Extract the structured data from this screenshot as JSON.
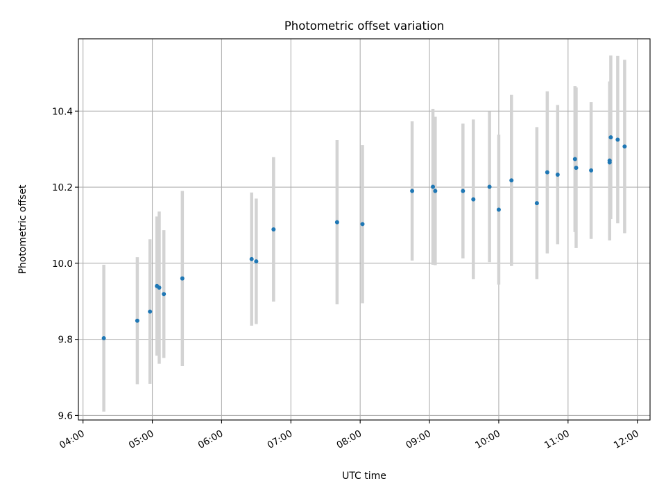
{
  "chart_data": {
    "type": "scatter",
    "title": "Photometric offset variation",
    "xlabel": "UTC time",
    "ylabel": "Photometric offset",
    "x_ticks": [
      "04:00",
      "05:00",
      "06:00",
      "07:00",
      "08:00",
      "09:00",
      "10:00",
      "11:00",
      "12:00"
    ],
    "y_ticks": [
      "9.6",
      "9.8",
      "10.0",
      "10.2",
      "10.4"
    ],
    "xlim": [
      "03:56",
      "12:11"
    ],
    "ylim": [
      9.588,
      10.59
    ],
    "grid": true,
    "colors": {
      "point": "#1f77b4",
      "errorbar": "#d3d3d3",
      "grid": "#b0b0b0"
    },
    "points": [
      {
        "x": "04:18",
        "y": 9.803,
        "err": 0.193
      },
      {
        "x": "04:47",
        "y": 9.849,
        "err": 0.167
      },
      {
        "x": "04:58",
        "y": 9.873,
        "err": 0.19
      },
      {
        "x": "05:04",
        "y": 9.94,
        "err": 0.183
      },
      {
        "x": "05:06",
        "y": 9.936,
        "err": 0.2
      },
      {
        "x": "05:10",
        "y": 9.919,
        "err": 0.168
      },
      {
        "x": "05:26",
        "y": 9.96,
        "err": 0.23
      },
      {
        "x": "06:26",
        "y": 10.011,
        "err": 0.175
      },
      {
        "x": "06:30",
        "y": 10.005,
        "err": 0.165
      },
      {
        "x": "06:45",
        "y": 10.089,
        "err": 0.19
      },
      {
        "x": "07:40",
        "y": 10.108,
        "err": 0.216
      },
      {
        "x": "08:02",
        "y": 10.103,
        "err": 0.208
      },
      {
        "x": "08:45",
        "y": 10.19,
        "err": 0.183
      },
      {
        "x": "09:03",
        "y": 10.201,
        "err": 0.205
      },
      {
        "x": "09:05",
        "y": 10.19,
        "err": 0.195
      },
      {
        "x": "09:29",
        "y": 10.19,
        "err": 0.177
      },
      {
        "x": "09:38",
        "y": 10.168,
        "err": 0.21
      },
      {
        "x": "09:52",
        "y": 10.201,
        "err": 0.198
      },
      {
        "x": "10:00",
        "y": 10.141,
        "err": 0.197
      },
      {
        "x": "10:11",
        "y": 10.218,
        "err": 0.225
      },
      {
        "x": "10:33",
        "y": 10.158,
        "err": 0.2
      },
      {
        "x": "10:42",
        "y": 10.239,
        "err": 0.213
      },
      {
        "x": "10:51",
        "y": 10.233,
        "err": 0.183
      },
      {
        "x": "11:06",
        "y": 10.274,
        "err": 0.192
      },
      {
        "x": "11:07",
        "y": 10.251,
        "err": 0.211
      },
      {
        "x": "11:20",
        "y": 10.244,
        "err": 0.18
      },
      {
        "x": "11:36",
        "y": 10.27,
        "err": 0.208
      },
      {
        "x": "11:36",
        "y": 10.265,
        "err": 0.205
      },
      {
        "x": "11:37",
        "y": 10.331,
        "err": 0.215
      },
      {
        "x": "11:43",
        "y": 10.325,
        "err": 0.22
      },
      {
        "x": "11:49",
        "y": 10.307,
        "err": 0.228
      }
    ]
  }
}
